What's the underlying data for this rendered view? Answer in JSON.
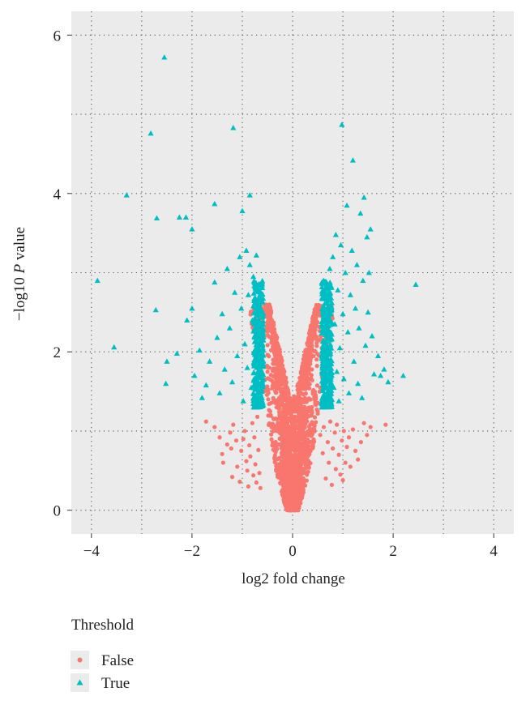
{
  "chart_data": {
    "type": "scatter",
    "title": "",
    "xlabel": "log2 fold change",
    "ylabel_main": "−log10 ",
    "ylabel_italic": "P",
    "ylabel_rest": " value",
    "xlim": [
      -4.4,
      4.4
    ],
    "ylim": [
      -0.3,
      6.3
    ],
    "x_ticks": [
      -4,
      -2,
      0,
      2,
      4
    ],
    "x_tick_labels": [
      "−4",
      "−2",
      "0",
      "2",
      "4"
    ],
    "y_ticks": [
      0,
      2,
      4,
      6
    ],
    "y_tick_labels": [
      "0",
      "2",
      "4",
      "6"
    ],
    "grid": true,
    "grid_style": "dotted",
    "panel_background": "#ebebeb",
    "legend": {
      "title": "Threshold",
      "placement": "bottom-left",
      "entries": [
        "False",
        "True"
      ]
    },
    "series": [
      {
        "name": "False",
        "marker": "circle",
        "color": "#f8766d",
        "note": "dense V-shaped cloud of non-significant genes from y=0 up to about 2.8",
        "points": [
          [
            -1.72,
            1.12
          ],
          [
            -1.55,
            1.05
          ],
          [
            -1.45,
            0.92
          ],
          [
            -1.4,
            0.71
          ],
          [
            -1.38,
            0.6
          ],
          [
            -1.3,
            0.83
          ],
          [
            -1.24,
            0.98
          ],
          [
            -1.22,
            0.78
          ],
          [
            -1.2,
            0.42
          ],
          [
            -1.18,
            1.08
          ],
          [
            -1.12,
            0.88
          ],
          [
            -1.1,
            0.55
          ],
          [
            -1.05,
            0.36
          ],
          [
            -1.02,
            0.75
          ],
          [
            -0.98,
            0.9
          ],
          [
            -0.95,
            1.0
          ],
          [
            -0.92,
            0.62
          ],
          [
            -0.9,
            0.5
          ],
          [
            -0.88,
            0.3
          ],
          [
            -0.86,
            0.82
          ],
          [
            -0.84,
            0.68
          ],
          [
            -0.8,
            1.1
          ],
          [
            -0.78,
            0.44
          ],
          [
            -0.76,
            0.92
          ],
          [
            -0.74,
            0.58
          ],
          [
            -0.72,
            0.35
          ],
          [
            -0.7,
            1.18
          ],
          [
            -0.68,
            0.76
          ],
          [
            -0.66,
            0.47
          ],
          [
            -0.64,
            0.28
          ],
          [
            0.5,
            1.22
          ],
          [
            0.55,
            0.95
          ],
          [
            0.6,
            0.72
          ],
          [
            0.62,
            1.05
          ],
          [
            0.66,
            0.4
          ],
          [
            0.7,
            0.86
          ],
          [
            0.72,
            0.6
          ],
          [
            0.75,
            1.12
          ],
          [
            0.78,
            0.32
          ],
          [
            0.8,
            0.78
          ],
          [
            0.84,
            0.98
          ],
          [
            0.86,
            0.52
          ],
          [
            0.88,
            1.08
          ],
          [
            0.92,
            0.7
          ],
          [
            0.95,
            0.45
          ],
          [
            0.98,
            0.88
          ],
          [
            1.0,
            0.38
          ],
          [
            1.02,
            1.0
          ],
          [
            1.05,
            0.6
          ],
          [
            1.08,
            0.8
          ],
          [
            1.12,
            0.92
          ],
          [
            1.15,
            0.55
          ],
          [
            1.2,
            1.02
          ],
          [
            1.25,
            0.75
          ],
          [
            1.3,
            0.64
          ],
          [
            1.36,
            0.86
          ],
          [
            1.42,
            1.1
          ],
          [
            1.48,
            0.95
          ],
          [
            1.55,
            1.05
          ],
          [
            1.85,
            1.08
          ]
        ]
      },
      {
        "name": "True",
        "marker": "triangle",
        "color": "#00bfc4",
        "note": "dense dual columns at |x|≈0.6–0.8 for y from 1.3 to ~3.2 plus scattered outliers",
        "points": [
          [
            -2.55,
            5.72
          ],
          [
            -2.82,
            4.76
          ],
          [
            -1.18,
            4.83
          ],
          [
            -3.3,
            3.98
          ],
          [
            -2.7,
            3.69
          ],
          [
            -2.25,
            3.7
          ],
          [
            -2.12,
            3.7
          ],
          [
            -2.0,
            3.55
          ],
          [
            -1.55,
            3.87
          ],
          [
            -1.0,
            3.78
          ],
          [
            -0.85,
            3.98
          ],
          [
            -3.88,
            2.9
          ],
          [
            -2.72,
            2.53
          ],
          [
            -3.55,
            2.06
          ],
          [
            -2.5,
            1.88
          ],
          [
            -2.52,
            1.6
          ],
          [
            -2.3,
            1.98
          ],
          [
            -2.1,
            2.4
          ],
          [
            -2.0,
            2.55
          ],
          [
            -1.95,
            1.7
          ],
          [
            -1.85,
            2.02
          ],
          [
            -1.8,
            1.42
          ],
          [
            -1.72,
            1.58
          ],
          [
            -1.65,
            1.88
          ],
          [
            -1.55,
            2.88
          ],
          [
            -1.5,
            2.18
          ],
          [
            -1.45,
            1.48
          ],
          [
            -1.4,
            2.48
          ],
          [
            -1.35,
            1.78
          ],
          [
            -1.3,
            3.05
          ],
          [
            -1.25,
            2.3
          ],
          [
            -1.2,
            1.62
          ],
          [
            -1.15,
            2.75
          ],
          [
            -1.1,
            1.95
          ],
          [
            -1.05,
            3.2
          ],
          [
            -1.02,
            2.55
          ],
          [
            -0.98,
            1.38
          ],
          [
            -0.95,
            2.1
          ],
          [
            -0.92,
            3.28
          ],
          [
            -0.9,
            1.8
          ],
          [
            -0.88,
            2.72
          ],
          [
            -0.85,
            3.1
          ],
          [
            -0.82,
            1.55
          ],
          [
            -0.8,
            2.4
          ],
          [
            -0.78,
            2.95
          ],
          [
            -0.76,
            1.9
          ],
          [
            -0.74,
            2.68
          ],
          [
            -0.72,
            3.22
          ],
          [
            -0.7,
            1.45
          ],
          [
            -0.68,
            2.18
          ],
          [
            -0.66,
            2.85
          ],
          [
            -0.64,
            1.7
          ],
          [
            -0.62,
            2.5
          ],
          [
            -0.6,
            1.32
          ],
          [
            -0.6,
            1.98
          ],
          [
            0.6,
            1.34
          ],
          [
            0.62,
            1.95
          ],
          [
            0.64,
            2.55
          ],
          [
            0.66,
            1.62
          ],
          [
            0.68,
            2.2
          ],
          [
            0.7,
            2.85
          ],
          [
            0.72,
            1.45
          ],
          [
            0.74,
            3.05
          ],
          [
            0.76,
            1.85
          ],
          [
            0.78,
            2.62
          ],
          [
            0.8,
            3.2
          ],
          [
            0.82,
            1.55
          ],
          [
            0.84,
            2.35
          ],
          [
            0.86,
            3.48
          ],
          [
            0.88,
            1.75
          ],
          [
            0.9,
            2.78
          ],
          [
            0.92,
            1.38
          ],
          [
            0.94,
            2.05
          ],
          [
            0.96,
            3.35
          ],
          [
            0.98,
            4.87
          ],
          [
            1.0,
            2.48
          ],
          [
            1.02,
            1.66
          ],
          [
            1.05,
            3.0
          ],
          [
            1.08,
            3.85
          ],
          [
            1.1,
            2.25
          ],
          [
            1.12,
            1.48
          ],
          [
            1.15,
            2.72
          ],
          [
            1.18,
            3.28
          ],
          [
            1.2,
            4.42
          ],
          [
            1.22,
            1.88
          ],
          [
            1.25,
            2.55
          ],
          [
            1.28,
            3.1
          ],
          [
            1.3,
            1.6
          ],
          [
            1.32,
            2.3
          ],
          [
            1.35,
            3.75
          ],
          [
            1.38,
            1.42
          ],
          [
            1.4,
            2.9
          ],
          [
            1.42,
            3.95
          ],
          [
            1.45,
            2.08
          ],
          [
            1.48,
            3.45
          ],
          [
            1.5,
            2.5
          ],
          [
            1.52,
            3.0
          ],
          [
            1.55,
            3.55
          ],
          [
            1.58,
            2.2
          ],
          [
            1.62,
            1.72
          ],
          [
            1.7,
            1.95
          ],
          [
            1.75,
            1.7
          ],
          [
            1.82,
            1.78
          ],
          [
            1.9,
            1.62
          ],
          [
            2.2,
            1.7
          ],
          [
            2.45,
            2.85
          ]
        ]
      }
    ]
  }
}
